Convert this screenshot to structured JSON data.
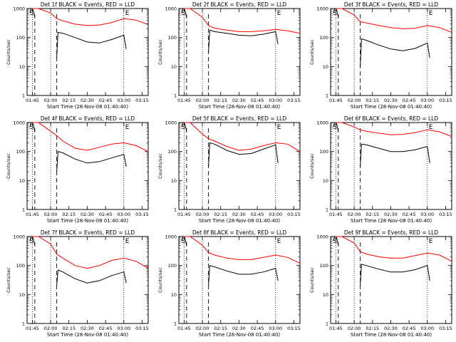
{
  "figure": {
    "xtitle": "Start Time (28-Nov-08 01:40:40)",
    "ylabel": "Counts/sec",
    "xticks": [
      "01:45",
      "02:00",
      "02:15",
      "02:30",
      "02:45",
      "03:00",
      "03:15"
    ],
    "yticks": [
      "1",
      "10",
      "100",
      "1000"
    ],
    "markers": {
      "S": "S",
      "E": "E"
    },
    "colors": {
      "events": "#000000",
      "lld": "#ff0000"
    }
  },
  "chart_data": [
    {
      "type": "line",
      "title": "Det 1f BLACK = Events, RED = LLD",
      "xlabel": "Start Time (28-Nov-08 01:40:40)",
      "ylabel": "Counts/sec",
      "yscale": "log",
      "ylim": [
        1,
        1000
      ],
      "xlim": [
        "01:40:40",
        "03:20"
      ],
      "vlines_dotted": [
        "01:45",
        "02:00",
        "03:00"
      ],
      "vlines_dashed": [
        "01:47",
        "02:05"
      ],
      "series": [
        {
          "name": "Events",
          "x": [
            "01:43",
            "01:44",
            "01:45",
            "01:46",
            "01:47"
          ],
          "y": [
            700,
            1000,
            1000,
            800,
            500
          ],
          "x2": [
            "02:05",
            "02:06",
            "02:10",
            "02:20",
            "02:30",
            "02:40",
            "02:50",
            "03:00",
            "03:02"
          ],
          "y2": [
            20,
            150,
            140,
            100,
            70,
            65,
            85,
            120,
            40
          ]
        },
        {
          "name": "LLD",
          "x": [
            "01:43",
            "01:44",
            "01:45",
            "01:47",
            "01:50",
            "02:00",
            "02:05",
            "02:10",
            "02:20",
            "02:30",
            "02:40",
            "02:50",
            "03:00",
            "03:10",
            "03:20"
          ],
          "y": [
            700,
            1000,
            1000,
            1000,
            1000,
            700,
            450,
            380,
            290,
            260,
            270,
            330,
            450,
            400,
            280
          ]
        }
      ]
    },
    {
      "type": "line",
      "title": "Det 2f BLACK = Events, RED = LLD",
      "xlabel": "Start Time (28-Nov-08 01:40:40)",
      "ylabel": "Counts/sec",
      "yscale": "log",
      "ylim": [
        1,
        1000
      ],
      "xlim": [
        "01:40:40",
        "03:20"
      ],
      "vlines_dotted": [
        "01:45",
        "02:00",
        "03:00"
      ],
      "vlines_dashed": [
        "01:47",
        "02:05"
      ],
      "series": [
        {
          "name": "Events",
          "x": [
            "01:43",
            "01:44",
            "01:45",
            "01:46",
            "01:47"
          ],
          "y": [
            700,
            1000,
            1000,
            800,
            500
          ],
          "x2": [
            "02:05",
            "02:06",
            "02:10",
            "02:20",
            "02:30",
            "02:40",
            "02:50",
            "03:00",
            "03:02"
          ],
          "y2": [
            30,
            180,
            160,
            140,
            120,
            115,
            130,
            160,
            60
          ]
        },
        {
          "name": "LLD",
          "x": [
            "01:43",
            "01:44",
            "01:45",
            "01:47",
            "01:50",
            "02:00",
            "02:05",
            "02:10",
            "02:20",
            "02:30",
            "02:40",
            "02:50",
            "03:00",
            "03:10",
            "03:20"
          ],
          "y": [
            700,
            1000,
            1000,
            1000,
            1000,
            500,
            260,
            210,
            180,
            160,
            160,
            170,
            190,
            170,
            140
          ]
        }
      ]
    },
    {
      "type": "line",
      "title": "Det 3f BLACK = Events, RED = LLD",
      "xlabel": "Start Time (28-Nov-08 01:40:40)",
      "ylabel": "Counts/sec",
      "yscale": "log",
      "ylim": [
        1,
        1000
      ],
      "xlim": [
        "01:40:40",
        "03:20"
      ],
      "vlines_dotted": [
        "01:45",
        "02:00",
        "03:00"
      ],
      "vlines_dashed": [
        "01:47",
        "02:05"
      ],
      "series": [
        {
          "name": "Events",
          "x": [
            "01:43",
            "01:44",
            "01:45",
            "01:46",
            "01:47"
          ],
          "y": [
            700,
            1000,
            1000,
            800,
            500
          ],
          "x2": [
            "02:05",
            "02:06",
            "02:10",
            "02:20",
            "02:30",
            "02:40",
            "02:50",
            "03:00",
            "03:02"
          ],
          "y2": [
            10,
            90,
            80,
            55,
            40,
            35,
            42,
            65,
            20
          ]
        },
        {
          "name": "LLD",
          "x": [
            "01:43",
            "01:44",
            "01:45",
            "01:47",
            "01:50",
            "02:00",
            "02:05",
            "02:10",
            "02:20",
            "02:30",
            "02:40",
            "02:50",
            "03:00",
            "03:10",
            "03:20"
          ],
          "y": [
            700,
            1000,
            1000,
            1000,
            1000,
            600,
            350,
            320,
            260,
            220,
            200,
            210,
            260,
            220,
            150
          ]
        }
      ]
    },
    {
      "type": "line",
      "title": "Det 4f BLACK = Events, RED = LLD",
      "xlabel": "Start Time (28-Nov-08 01:40:40)",
      "ylabel": "Counts/sec",
      "yscale": "log",
      "ylim": [
        1,
        1000
      ],
      "xlim": [
        "01:40:40",
        "03:20"
      ],
      "vlines_dotted": [
        "01:45",
        "02:00",
        "03:00"
      ],
      "vlines_dashed": [
        "01:47",
        "02:05"
      ],
      "series": [
        {
          "name": "Events",
          "x": [
            "01:43",
            "01:44",
            "01:45",
            "01:46",
            "01:47"
          ],
          "y": [
            700,
            1000,
            1000,
            800,
            500
          ],
          "x2": [
            "02:05",
            "02:06",
            "02:10",
            "02:20",
            "02:30",
            "02:40",
            "02:50",
            "03:00",
            "03:02"
          ],
          "y2": [
            20,
            100,
            90,
            55,
            40,
            45,
            60,
            80,
            30
          ]
        },
        {
          "name": "LLD",
          "x": [
            "01:43",
            "01:44",
            "01:45",
            "01:47",
            "01:50",
            "02:00",
            "02:05",
            "02:10",
            "02:20",
            "02:30",
            "02:40",
            "02:50",
            "03:00",
            "03:10",
            "03:20"
          ],
          "y": [
            700,
            1000,
            1000,
            1000,
            1000,
            500,
            350,
            230,
            130,
            110,
            140,
            180,
            200,
            160,
            100
          ]
        }
      ]
    },
    {
      "type": "line",
      "title": "Det 5f BLACK = Events, RED = LLD",
      "xlabel": "Start Time (28-Nov-08 01:40:40)",
      "ylabel": "Counts/sec",
      "yscale": "log",
      "ylim": [
        1,
        1000
      ],
      "xlim": [
        "01:40:40",
        "03:20"
      ],
      "vlines_dotted": [
        "01:45",
        "02:00",
        "03:00"
      ],
      "vlines_dashed": [
        "01:47",
        "02:05"
      ],
      "series": [
        {
          "name": "Events",
          "x": [
            "01:43",
            "01:44",
            "01:45",
            "01:46",
            "01:47"
          ],
          "y": [
            700,
            1000,
            1000,
            800,
            500
          ],
          "x2": [
            "02:05",
            "02:06",
            "02:10",
            "02:20",
            "02:30",
            "02:40",
            "02:50",
            "03:00",
            "03:02"
          ],
          "y2": [
            30,
            200,
            180,
            110,
            80,
            85,
            120,
            170,
            40
          ]
        },
        {
          "name": "LLD",
          "x": [
            "01:43",
            "01:44",
            "01:45",
            "01:47",
            "01:50",
            "02:00",
            "02:05",
            "02:10",
            "02:20",
            "02:30",
            "02:40",
            "02:50",
            "03:00",
            "03:10",
            "03:20"
          ],
          "y": [
            700,
            1000,
            1000,
            1000,
            1000,
            400,
            280,
            230,
            150,
            110,
            120,
            160,
            200,
            180,
            100
          ]
        }
      ]
    },
    {
      "type": "line",
      "title": "Det 6f BLACK = Events, RED = LLD",
      "xlabel": "Start Time (28-Nov-08 01:40:40)",
      "ylabel": "Counts/sec",
      "yscale": "log",
      "ylim": [
        1,
        1000
      ],
      "xlim": [
        "01:40:40",
        "03:20"
      ],
      "vlines_dotted": [
        "01:45",
        "02:00",
        "03:00"
      ],
      "vlines_dashed": [
        "01:47",
        "02:05"
      ],
      "series": [
        {
          "name": "Events",
          "x": [
            "01:43",
            "01:44",
            "01:45",
            "01:46",
            "01:47"
          ],
          "y": [
            700,
            1000,
            1000,
            800,
            500
          ],
          "x2": [
            "02:05",
            "02:06",
            "02:10",
            "02:20",
            "02:30",
            "02:40",
            "02:50",
            "03:00",
            "03:02"
          ],
          "y2": [
            30,
            180,
            170,
            130,
            100,
            100,
            115,
            150,
            40
          ]
        },
        {
          "name": "LLD",
          "x": [
            "01:43",
            "01:44",
            "01:45",
            "01:47",
            "01:50",
            "02:00",
            "02:05",
            "02:10",
            "02:20",
            "02:30",
            "02:40",
            "02:50",
            "03:00",
            "03:10",
            "03:20"
          ],
          "y": [
            700,
            1000,
            1000,
            1000,
            1000,
            700,
            560,
            500,
            430,
            380,
            390,
            450,
            560,
            480,
            330
          ]
        }
      ]
    },
    {
      "type": "line",
      "title": "Det 7f BLACK = Events, RED = LLD",
      "xlabel": "Start Time (28-Nov-08 01:40:40)",
      "ylabel": "Counts/sec",
      "yscale": "log",
      "ylim": [
        1,
        1000
      ],
      "xlim": [
        "01:40:40",
        "03:20"
      ],
      "vlines_dotted": [
        "01:45",
        "02:00",
        "03:00"
      ],
      "vlines_dashed": [
        "01:47",
        "02:05"
      ],
      "series": [
        {
          "name": "Events",
          "x": [
            "01:43",
            "01:44",
            "01:45",
            "01:46",
            "01:47"
          ],
          "y": [
            700,
            1000,
            1000,
            800,
            500
          ],
          "x2": [
            "02:05",
            "02:06",
            "02:10",
            "02:20",
            "02:30",
            "02:40",
            "02:50",
            "03:00",
            "03:02"
          ],
          "y2": [
            20,
            70,
            60,
            35,
            25,
            30,
            45,
            60,
            25
          ]
        },
        {
          "name": "LLD",
          "x": [
            "01:43",
            "01:44",
            "01:45",
            "01:47",
            "01:50",
            "02:00",
            "02:05",
            "02:10",
            "02:20",
            "02:30",
            "02:40",
            "02:50",
            "03:00",
            "03:10",
            "03:20"
          ],
          "y": [
            700,
            1000,
            1000,
            1000,
            1000,
            550,
            250,
            180,
            100,
            80,
            100,
            150,
            180,
            140,
            80
          ]
        }
      ]
    },
    {
      "type": "line",
      "title": "Det 8f BLACK = Events, RED = LLD",
      "xlabel": "Start Time (28-Nov-08 01:40:40)",
      "ylabel": "Counts/sec",
      "yscale": "log",
      "ylim": [
        1,
        1000
      ],
      "xlim": [
        "01:40:40",
        "03:20"
      ],
      "vlines_dotted": [
        "01:45",
        "02:00",
        "03:00"
      ],
      "vlines_dashed": [
        "01:47",
        "02:05"
      ],
      "series": [
        {
          "name": "Events",
          "x": [
            "01:43",
            "01:44",
            "01:45",
            "01:46",
            "01:47"
          ],
          "y": [
            700,
            1000,
            1000,
            800,
            500
          ],
          "x2": [
            "02:05",
            "02:06",
            "02:10",
            "02:20",
            "02:30",
            "02:40",
            "02:50",
            "03:00",
            "03:02"
          ],
          "y2": [
            20,
            100,
            90,
            65,
            50,
            50,
            60,
            80,
            30
          ]
        },
        {
          "name": "LLD",
          "x": [
            "01:43",
            "01:44",
            "01:45",
            "01:47",
            "01:50",
            "02:00",
            "02:05",
            "02:10",
            "02:20",
            "02:30",
            "02:40",
            "02:50",
            "03:00",
            "03:10",
            "03:20"
          ],
          "y": [
            700,
            1000,
            1000,
            1000,
            1000,
            500,
            280,
            230,
            180,
            160,
            160,
            190,
            230,
            190,
            120
          ]
        }
      ]
    },
    {
      "type": "line",
      "title": "Det 9f BLACK = Events, RED = LLD",
      "xlabel": "Start Time (28-Nov-08 01:40:40)",
      "ylabel": "Counts/sec",
      "yscale": "log",
      "ylim": [
        1,
        1000
      ],
      "xlim": [
        "01:40:40",
        "03:20"
      ],
      "vlines_dotted": [
        "01:45",
        "02:00",
        "03:00"
      ],
      "vlines_dashed": [
        "01:47",
        "02:05"
      ],
      "series": [
        {
          "name": "Events",
          "x": [
            "01:43",
            "01:44",
            "01:45",
            "01:46",
            "01:47"
          ],
          "y": [
            700,
            1000,
            1000,
            800,
            500
          ],
          "x2": [
            "02:05",
            "02:06",
            "02:10",
            "02:20",
            "02:30",
            "02:40",
            "02:50",
            "03:00",
            "03:02"
          ],
          "y2": [
            20,
            110,
            100,
            75,
            60,
            60,
            72,
            100,
            30
          ]
        },
        {
          "name": "LLD",
          "x": [
            "01:43",
            "01:44",
            "01:45",
            "01:47",
            "01:50",
            "02:00",
            "02:05",
            "02:10",
            "02:20",
            "02:30",
            "02:40",
            "02:50",
            "03:00",
            "03:10",
            "03:20"
          ],
          "y": [
            700,
            1000,
            1000,
            1000,
            1000,
            600,
            300,
            250,
            200,
            180,
            180,
            220,
            270,
            230,
            140
          ]
        }
      ]
    }
  ]
}
